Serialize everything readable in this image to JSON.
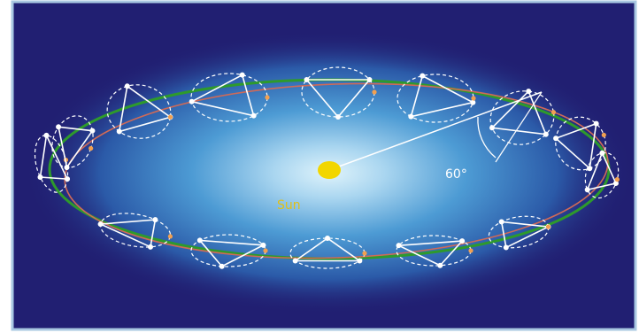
{
  "labels": {
    "sun": "Sun",
    "angle": "60°"
  },
  "colors": {
    "background": "#211f72",
    "frame": "#a9c8e2",
    "glow_center": "#dff3fb",
    "glow_mid": "#3f8cc8",
    "sun": "#f2d600",
    "sun_label": "#e1c018",
    "green_orbit": "#2e9a2c",
    "red_orbit": "#cf6a58",
    "detector_lines": "#ffffff",
    "orange_markers": "#f2a050",
    "angle_text": "#ffffff"
  },
  "icons": {
    "sun": "sun-dot",
    "spacecraft": "triangle-formation"
  }
}
